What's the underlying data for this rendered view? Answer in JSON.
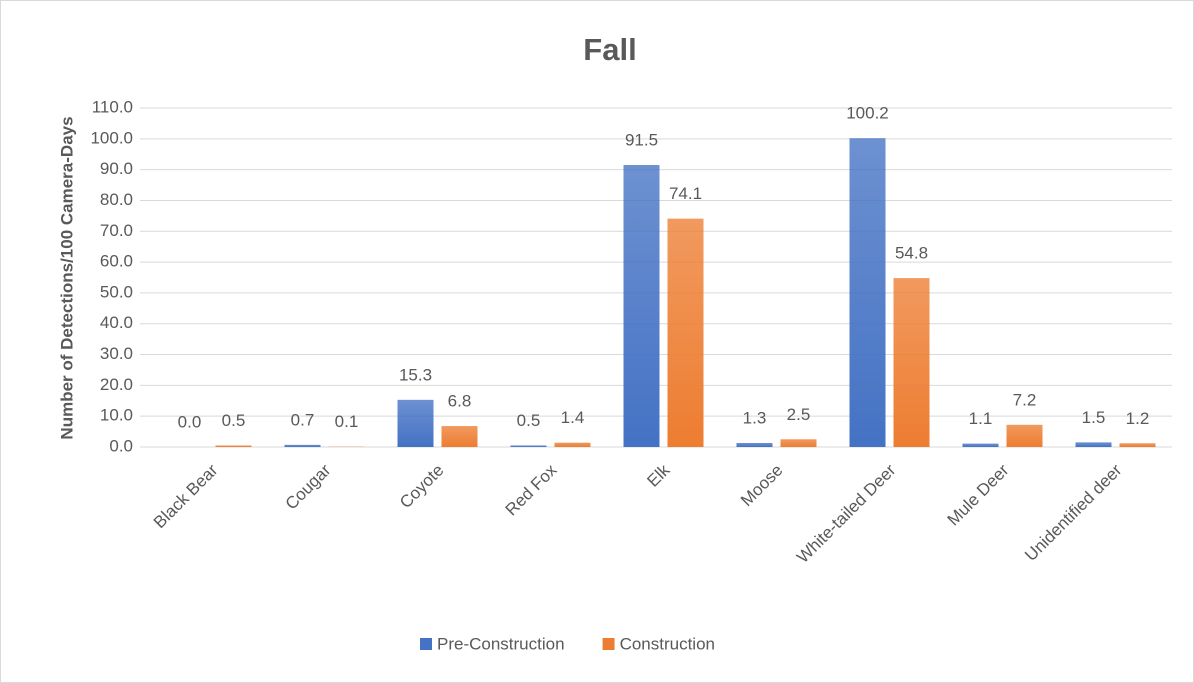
{
  "chart_data": {
    "type": "bar",
    "title": "Fall",
    "y_label": "Number of Detections/100 Camera-Days",
    "categories": [
      "Black Bear",
      "Cougar",
      "Coyote",
      "Red Fox",
      "Elk",
      "Moose",
      "White-tailed Deer",
      "Mule Deer",
      "Unidentified deer"
    ],
    "series": [
      {
        "name": "Pre-Construction",
        "color": "#4472c4",
        "values": [
          0.0,
          0.7,
          15.3,
          0.5,
          91.5,
          1.3,
          100.2,
          1.1,
          1.5
        ],
        "value_labels": [
          "0.0",
          "0.7",
          "15.3",
          "0.5",
          "91.5",
          "1.3",
          "100.2",
          "1.1",
          "1.5"
        ]
      },
      {
        "name": "Construction",
        "color": "#ed7d31",
        "values": [
          0.5,
          0.1,
          6.8,
          1.4,
          74.1,
          2.5,
          54.8,
          7.2,
          1.2
        ],
        "value_labels": [
          "0.5",
          "0.1",
          "6.8",
          "1.4",
          "74.1",
          "2.5",
          "54.8",
          "7.2",
          "1.2"
        ]
      }
    ],
    "ylim": [
      0,
      110
    ],
    "yticks": [
      {
        "value": 0,
        "label": "0.0"
      },
      {
        "value": 10,
        "label": "10.0"
      },
      {
        "value": 20,
        "label": "20.0"
      },
      {
        "value": 30,
        "label": "30.0"
      },
      {
        "value": 40,
        "label": "40.0"
      },
      {
        "value": 50,
        "label": "50.0"
      },
      {
        "value": 60,
        "label": "60.0"
      },
      {
        "value": 70,
        "label": "70.0"
      },
      {
        "value": 80,
        "label": "80.0"
      },
      {
        "value": 90,
        "label": "90.0"
      },
      {
        "value": 100,
        "label": "100.0"
      },
      {
        "value": 110,
        "label": "110.0"
      }
    ],
    "grid": true,
    "legend": "bottom"
  }
}
